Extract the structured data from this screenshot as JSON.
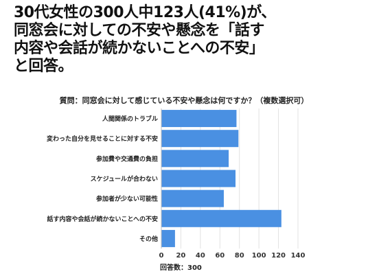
{
  "headline": {
    "line1": "30代女性の300人中123人(41%)が、",
    "line2": "同窓会に対しての不安や懸念を「話す",
    "line3": "内容や会話が続かないことへの不安」",
    "line4": "と回答。"
  },
  "chart_data": {
    "type": "bar",
    "orientation": "horizontal",
    "title": "質問：同窓会に対して感じている不安や懸念は何ですか？（複数選択可）",
    "categories": [
      "人間関係のトラブル",
      "変わった自分を見せることに対する不安",
      "参加費や交通費の負担",
      "スケジュールが合わない",
      "参加者が少ない可能性",
      "話す内容や会話が続かないことへの不安",
      "その他"
    ],
    "values": [
      77,
      79,
      69,
      76,
      64,
      123,
      14
    ],
    "xlim": [
      0,
      140
    ],
    "xticks": [
      0,
      20,
      40,
      60,
      80,
      100,
      120,
      140
    ],
    "grid": true,
    "bar_color": "#4a90e2",
    "footnote": "回答数：300"
  }
}
